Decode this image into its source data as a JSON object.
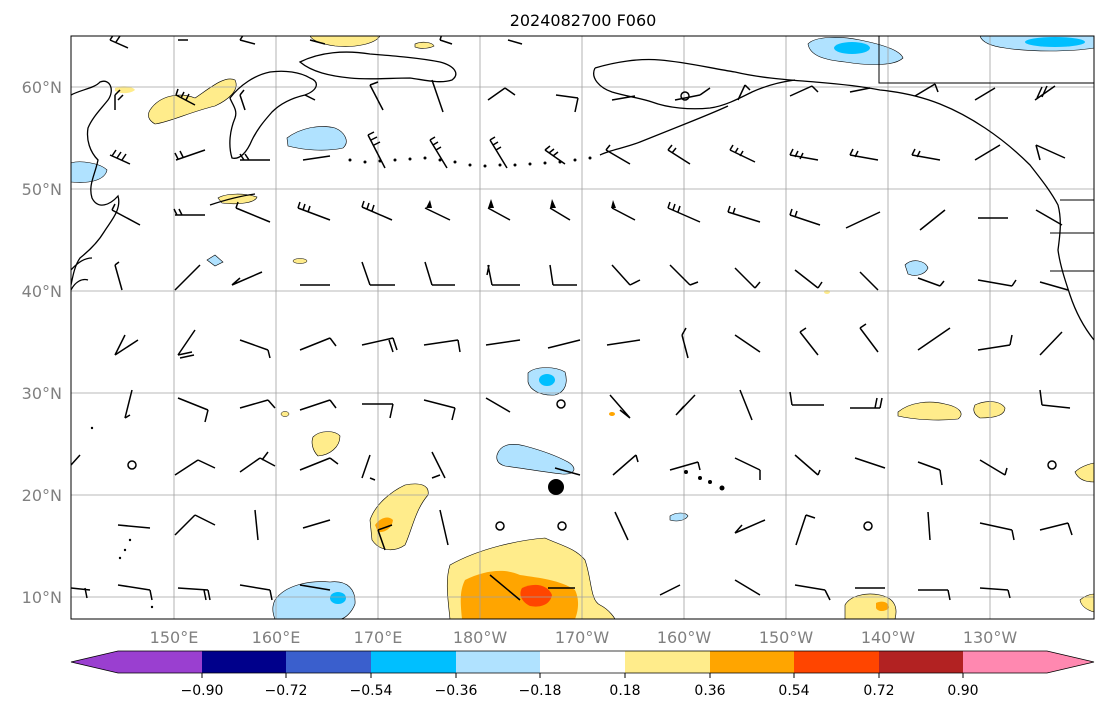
{
  "title": "2024082700 F060",
  "lat_labels": [
    "60°N",
    "50°N",
    "40°N",
    "30°N",
    "20°N",
    "10°N"
  ],
  "lon_labels": [
    "150°E",
    "160°E",
    "170°E",
    "180°W",
    "170°W",
    "160°W",
    "150°W",
    "140°W",
    "130°W"
  ],
  "colorbar": {
    "ticks": [
      "−0.90",
      "−0.72",
      "−0.54",
      "−0.36",
      "−0.18",
      "0.18",
      "0.36",
      "0.54",
      "0.72",
      "0.90"
    ],
    "colors": [
      "#9a3fd0",
      "#00008b",
      "#3a5fcd",
      "#00bfff",
      "#b0e2ff",
      "#ffffff",
      "#ffec8b",
      "#ffa500",
      "#ff4500",
      "#b22222",
      "#ff88b0"
    ]
  },
  "colors": {
    "land_outline": "#000000",
    "grid": "#a0a0a0",
    "label": "#808080",
    "frame": "#000000"
  }
}
